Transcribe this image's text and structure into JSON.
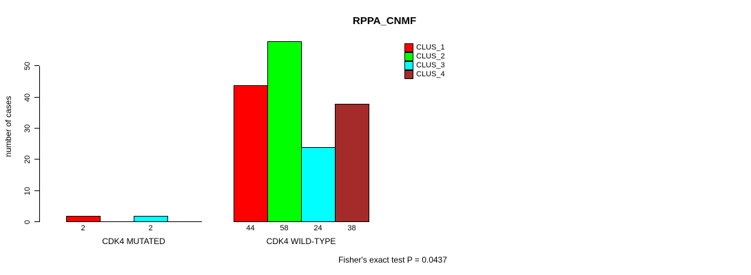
{
  "chart_data": {
    "type": "bar",
    "title": "RPPA_CNMF",
    "ylabel": "number of cases",
    "xlabel": "",
    "categories": [
      "CDK4 MUTATED",
      "CDK4 WILD-TYPE"
    ],
    "series": [
      {
        "name": "CLUS_1",
        "color": "#ff0000",
        "values": [
          2,
          44
        ]
      },
      {
        "name": "CLUS_2",
        "color": "#00ff00",
        "values": [
          0,
          58
        ]
      },
      {
        "name": "CLUS_3",
        "color": "#00ffff",
        "values": [
          2,
          24
        ]
      },
      {
        "name": "CLUS_4",
        "color": "#a52a2a",
        "values": [
          0,
          38
        ]
      }
    ],
    "bar_value_labels": {
      "CDK4 MUTATED": [
        2,
        2
      ],
      "CDK4 WILD-TYPE": [
        44,
        58,
        24,
        38
      ]
    },
    "yticks": [
      0,
      10,
      20,
      30,
      40,
      50
    ],
    "ylim": [
      0,
      58
    ],
    "grid": "off",
    "legend_position": "top-right",
    "legend_entries": [
      "CLUS_1",
      "CLUS_2",
      "CLUS_3",
      "CLUS_4"
    ],
    "annotation": "Fisher's exact test P = 0.0437"
  },
  "colors": {
    "background": "#ffffff",
    "axis": "#000000",
    "clus_1": "#ff0000",
    "clus_2": "#00ff00",
    "clus_3": "#00ffff",
    "clus_4": "#a52a2a"
  }
}
